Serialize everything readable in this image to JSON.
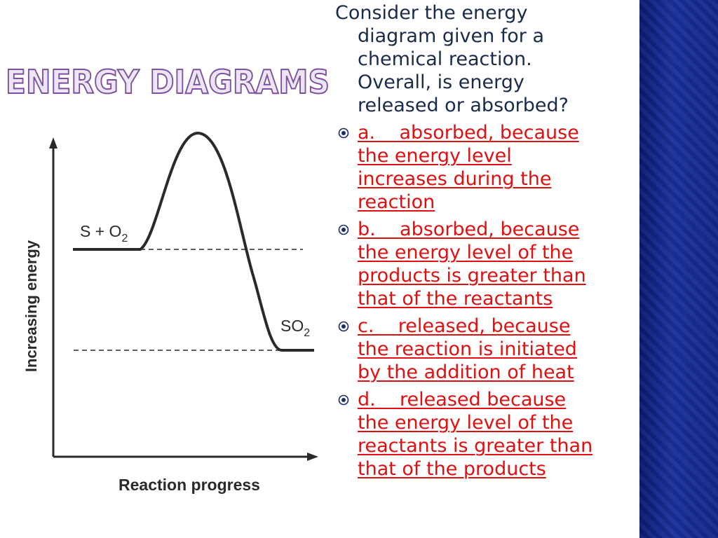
{
  "title": "ENERGY DIAGRAMS",
  "diagram": {
    "y_axis_label": "Increasing energy",
    "x_axis_label": "Reaction progress",
    "reactants": {
      "text": "S + O",
      "sub": "2"
    },
    "products": {
      "text": "SO",
      "sub": "2"
    }
  },
  "question": [
    "Consider the energy",
    "diagram given for a",
    "chemical reaction.",
    "Overall, is energy",
    "released or absorbed?"
  ],
  "options": [
    {
      "lines": [
        "a.    absorbed, because",
        "the energy level",
        "increases during the",
        "reaction"
      ]
    },
    {
      "lines": [
        "b.    absorbed, because",
        "the energy level of the",
        "products is greater than",
        "that of the reactants"
      ]
    },
    {
      "lines": [
        "c.    released, because",
        "the reaction is initiated",
        "by the addition of heat"
      ]
    },
    {
      "lines": [
        "d.    released because",
        "the energy level of the",
        "reactants is greater than",
        "that of the products"
      ]
    }
  ]
}
